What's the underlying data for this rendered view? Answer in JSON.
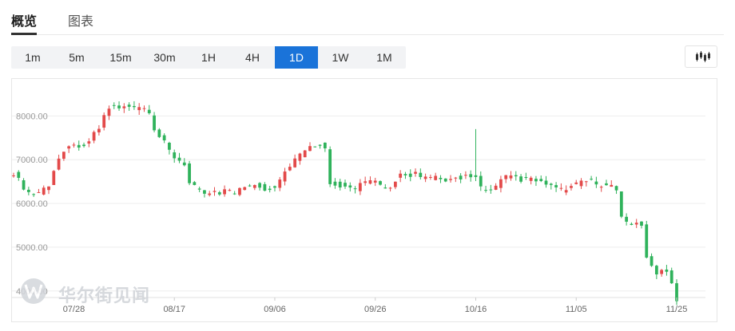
{
  "tabs": [
    {
      "label": "概览",
      "active": true
    },
    {
      "label": "图表",
      "active": false
    }
  ],
  "timeframes": [
    "1m",
    "5m",
    "15m",
    "30m",
    "1H",
    "4H",
    "1D",
    "1W",
    "1M"
  ],
  "active_timeframe": "1D",
  "chart_type_icon": "candlestick-icon",
  "watermark": {
    "text": "华尔街见闻",
    "logo": "wallstreetcn-logo"
  },
  "colors": {
    "up": "#e34a4a",
    "down": "#2fb25b",
    "active": "#1a73d9",
    "grid": "#eeeeee",
    "axis_text": "#999999"
  },
  "chart_data": {
    "type": "candlestick",
    "title": "",
    "xlabel": "",
    "ylabel": "",
    "ylim": [
      3850,
      8700
    ],
    "yticks": [
      "8000.00",
      "7000.00",
      "6000.00",
      "5000.00",
      "4000.00"
    ],
    "xticks": [
      "07/28",
      "08/17",
      "09/06",
      "09/26",
      "10/16",
      "11/05",
      "11/25"
    ],
    "start_date": "2018-07-16",
    "end_date": "2018-11-25",
    "close": [
      6700,
      6500,
      6300,
      6200,
      6250,
      6350,
      6450,
      6900,
      7200,
      7350,
      7300,
      7350,
      7350,
      7550,
      7700,
      8050,
      8250,
      8150,
      8200,
      8200,
      8150,
      8200,
      8150,
      7650,
      7500,
      7350,
      7100,
      7000,
      6950,
      6400,
      6350,
      6200,
      6250,
      6300,
      6250,
      6350,
      6200,
      6300,
      6400,
      6400,
      6500,
      6300,
      6350,
      6400,
      6600,
      6800,
      7000,
      7100,
      7200,
      7300,
      7350,
      7400,
      6500,
      6450,
      6400,
      6350,
      6300,
      6450,
      6500,
      6550,
      6400,
      6300,
      6350,
      6600,
      6700,
      6650,
      6700,
      6600,
      6550,
      6600,
      6550,
      6500,
      6550,
      6600,
      6600,
      6650,
      6600,
      6300,
      6250,
      6300,
      6500,
      6600,
      6650,
      6550,
      6550,
      6550,
      6500,
      6450,
      6450,
      6350,
      6300,
      6350,
      6400,
      6450,
      6500,
      6550,
      6400,
      6450,
      6350,
      6400,
      5600,
      5500,
      5600,
      5650,
      4800,
      4500,
      4400,
      4500,
      4300,
      3800
    ],
    "volatility": "daily open/high/low derived from consecutive closes"
  }
}
